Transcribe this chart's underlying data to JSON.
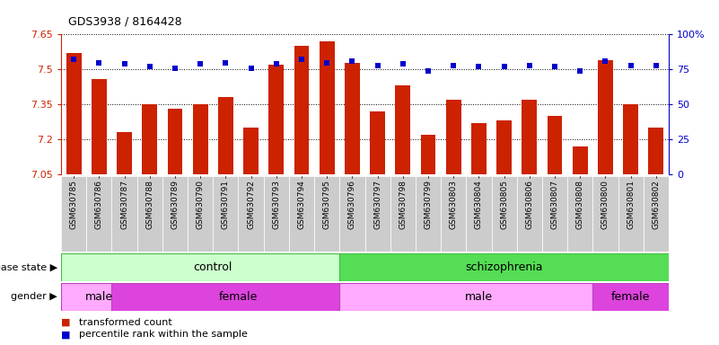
{
  "title": "GDS3938 / 8164428",
  "samples": [
    "GSM630785",
    "GSM630786",
    "GSM630787",
    "GSM630788",
    "GSM630789",
    "GSM630790",
    "GSM630791",
    "GSM630792",
    "GSM630793",
    "GSM630794",
    "GSM630795",
    "GSM630796",
    "GSM630797",
    "GSM630798",
    "GSM630799",
    "GSM630803",
    "GSM630804",
    "GSM630805",
    "GSM630806",
    "GSM630807",
    "GSM630808",
    "GSM630800",
    "GSM630801",
    "GSM630802"
  ],
  "transformed_count": [
    7.57,
    7.46,
    7.23,
    7.35,
    7.33,
    7.35,
    7.38,
    7.25,
    7.52,
    7.6,
    7.62,
    7.53,
    7.32,
    7.43,
    7.22,
    7.37,
    7.27,
    7.28,
    7.37,
    7.3,
    7.17,
    7.54,
    7.35,
    7.25
  ],
  "percentile_rank": [
    82,
    80,
    79,
    77,
    76,
    79,
    80,
    76,
    79,
    82,
    80,
    81,
    78,
    79,
    74,
    78,
    77,
    77,
    78,
    77,
    74,
    81,
    78,
    78
  ],
  "ylim_left": [
    7.05,
    7.65
  ],
  "ylim_right": [
    0,
    100
  ],
  "yticks_left": [
    7.05,
    7.2,
    7.35,
    7.5,
    7.65
  ],
  "yticks_right": [
    0,
    25,
    50,
    75,
    100
  ],
  "bar_color": "#cc2200",
  "dot_color": "#0000cc",
  "disease_groups": [
    {
      "label": "control",
      "start": 0,
      "end": 11,
      "color": "#ccffcc",
      "edge_color": "#44bb44"
    },
    {
      "label": "schizophrenia",
      "start": 11,
      "end": 23,
      "color": "#55dd55",
      "edge_color": "#44bb44"
    }
  ],
  "gender_groups": [
    {
      "label": "male",
      "start": 0,
      "end": 2,
      "color": "#ffaaff",
      "edge_color": "#bb44bb"
    },
    {
      "label": "female",
      "start": 2,
      "end": 11,
      "color": "#dd44dd",
      "edge_color": "#bb44bb"
    },
    {
      "label": "male",
      "start": 11,
      "end": 21,
      "color": "#ffaaff",
      "edge_color": "#bb44bb"
    },
    {
      "label": "female",
      "start": 21,
      "end": 23,
      "color": "#dd44dd",
      "edge_color": "#bb44bb"
    }
  ],
  "legend_items": [
    {
      "label": "transformed count",
      "color": "#cc2200"
    },
    {
      "label": "percentile rank within the sample",
      "color": "#0000cc"
    }
  ],
  "tick_bg": "#dddddd",
  "chart_bg": "#ffffff"
}
